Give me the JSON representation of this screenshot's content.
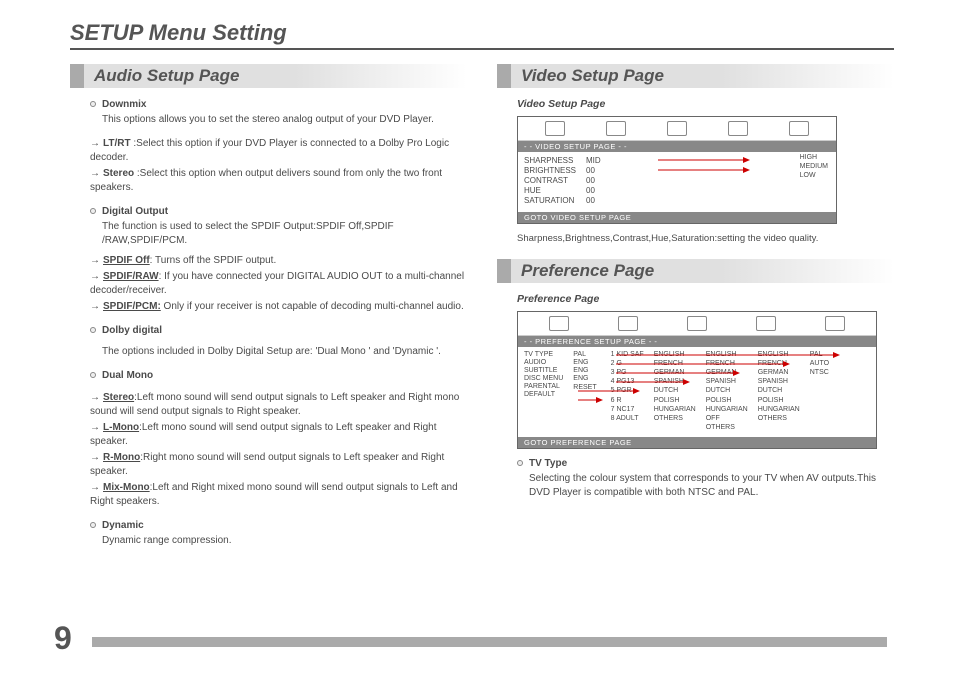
{
  "page_title": "SETUP Menu Setting",
  "page_number": "9",
  "left": {
    "section_title": "Audio Setup Page",
    "downmix": {
      "label": "Downmix",
      "desc": "This options allows you to set the stereo analog output of your DVD Player.",
      "lt_rt_label": "LT/RT",
      "lt_rt_text": " :Select  this option if your DVD Player  is  connected  to  a Dolby Pro Logic decoder.",
      "stereo_label": "Stereo",
      "stereo_text": " :Select this option when output delivers sound from only the two  front speakers."
    },
    "digital_output": {
      "label": "Digital Output",
      "desc": "The function is used to select  the SPDIF Output:SPDIF Off,SPDIF /RAW,SPDIF/PCM.",
      "off_label": "SPDIF Off",
      "off_text": ": Turns off the SPDIF output.",
      "raw_label": "SPDIF/RAW",
      "raw_text": ":  If you have connected  your  DIGITAL AUDIO OUT to a multi-channel decoder/receiver.",
      "pcm_label": "SPDIF/PCM:",
      "pcm_text": "  Only if your receiver is not capable of decoding  multi-channel audio."
    },
    "dolby": {
      "label": "Dolby digital",
      "desc": "The options included in Dolby Digital Setup are: 'Dual Mono ' and 'Dynamic '."
    },
    "dual_mono": {
      "label": "Dual Mono",
      "stereo_label": "Stereo",
      "stereo_text": ":Left mono sound will send output signals to Left speaker and Right mono sound will send output signals to Right speaker.",
      "lmono_label": "L-Mono",
      "lmono_text": ":Left mono sound will send output signals to Left speaker and Right speaker.",
      "rmono_label": "R-Mono",
      "rmono_text": ":Right mono sound will send output signals to Left speaker and Right speaker.",
      "mix_label": "Mix-Mono",
      "mix_text": ":Left and Right mixed mono sound will send output signals  to Left and Right speakers."
    },
    "dynamic": {
      "label": "Dynamic",
      "desc": "Dynamic range compression."
    }
  },
  "right": {
    "video_section_title": "Video Setup Page",
    "video_sub": "Video Setup Page",
    "video_osd": {
      "strip_top": "- -  VIDEO SETUP PAGE  - -",
      "strip_bottom": "GOTO VIDEO SETUP PAGE",
      "rows": [
        {
          "k": "SHARPNESS",
          "v": "MID"
        },
        {
          "k": "BRIGHTNESS",
          "v": "00"
        },
        {
          "k": "CONTRAST",
          "v": "00"
        },
        {
          "k": "HUE",
          "v": "00"
        },
        {
          "k": "SATURATION",
          "v": "00"
        }
      ],
      "options": [
        "HIGH",
        "MEDIUM",
        "LOW"
      ]
    },
    "video_caption": "Sharpness,Brightness,Contrast,Hue,Saturation:setting the video quality.",
    "pref_section_title": "Preference Page",
    "pref_sub": "Preference Page",
    "pref_osd": {
      "strip_top": "- -  PREFERENCE SETUP PAGE  - -",
      "strip_bottom": "GOTO PREFERENCE PAGE",
      "col1": [
        {
          "k": "TV TYPE",
          "v": "PAL"
        },
        {
          "k": "AUDIO",
          "v": "ENG"
        },
        {
          "k": "SUBTITLE",
          "v": "ENG"
        },
        {
          "k": "DISC MENU",
          "v": "ENG"
        },
        {
          "k": "PARENTAL",
          "v": ""
        },
        {
          "k": "DEFAULT",
          "v": "RESET"
        }
      ],
      "parental": [
        "1 KID SAF",
        "2 G",
        "3 PG",
        "4 PG13",
        "5 PGR",
        "6 R",
        "7 NC17",
        "8 ADULT"
      ],
      "langs1": [
        "ENGLISH",
        "FRENCH",
        "GERMAN",
        "SPANISH",
        "DUTCH",
        "POLISH",
        "HUNGARIAN",
        "OTHERS"
      ],
      "langs2": [
        "ENGLISH",
        "FRENCH",
        "GERMAN",
        "SPANISH",
        "DUTCH",
        "POLISH",
        "HUNGARIAN",
        "OFF",
        "OTHERS"
      ],
      "langs3": [
        "ENGLISH",
        "FRENCH",
        "GERMAN",
        "SPANISH",
        "DUTCH",
        "POLISH",
        "HUNGARIAN",
        "OTHERS"
      ],
      "tvtype": [
        "PAL",
        "AUTO",
        "NTSC"
      ]
    },
    "tv_type": {
      "label": "TV Type",
      "desc": "Selecting the colour system that corresponds to your TV when AV outputs.This DVD Player is compatible with both NTSC and  PAL."
    }
  }
}
